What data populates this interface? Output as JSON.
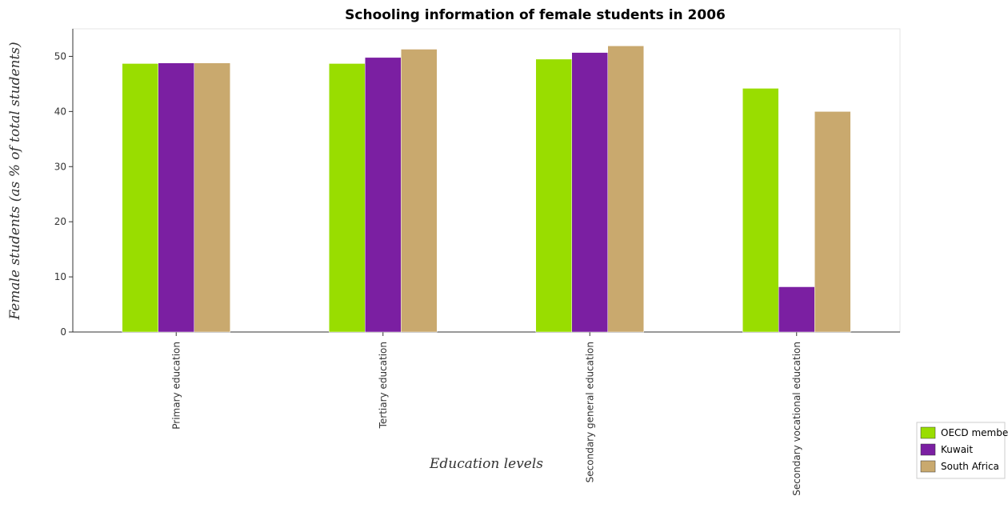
{
  "chart_data": {
    "type": "bar",
    "title": "Schooling information of female students in 2006",
    "xlabel": "Education levels",
    "ylabel": "Female students (as % of total students)",
    "ylim": [
      0,
      55
    ],
    "yticks": [
      0,
      10,
      20,
      30,
      40,
      50
    ],
    "categories": [
      "Primary education",
      "Tertiary education",
      "Secondary general education",
      "Secondary vocational education"
    ],
    "series": [
      {
        "name": "OECD members",
        "color": "#99dd00",
        "values": [
          48.7,
          48.7,
          49.5,
          44.2
        ]
      },
      {
        "name": "Kuwait",
        "color": "#7b1fa2",
        "values": [
          48.8,
          49.8,
          50.7,
          8.2
        ]
      },
      {
        "name": "South Africa",
        "color": "#c9a96e",
        "values": [
          48.8,
          51.3,
          51.9,
          40.0
        ]
      }
    ],
    "grid": false,
    "legend_position": "bottom-right"
  }
}
